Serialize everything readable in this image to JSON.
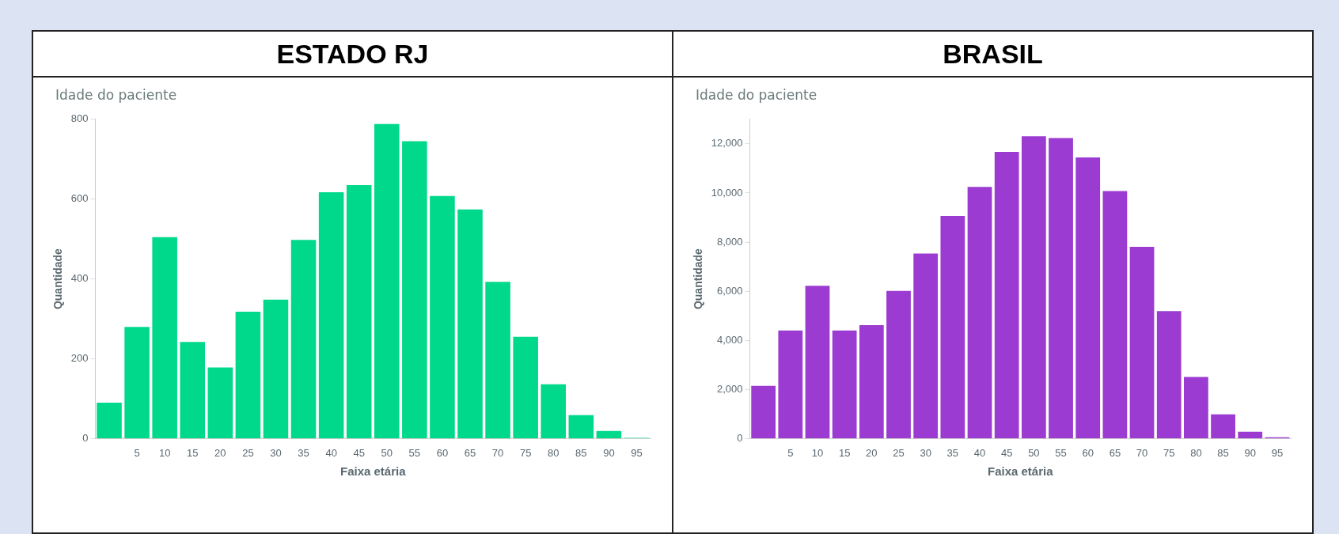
{
  "chart_data": [
    {
      "type": "bar",
      "title": "ESTADO RJ",
      "subtitle": "Idade do paciente",
      "xlabel": "Faixa etária",
      "ylabel": "Quantidade",
      "categories": [
        null,
        "5",
        "10",
        "15",
        "20",
        "25",
        "30",
        "35",
        "40",
        "45",
        "50",
        "55",
        "60",
        "65",
        "70",
        "75",
        "80",
        "85",
        "90",
        "95"
      ],
      "values": [
        90,
        280,
        505,
        242,
        178,
        318,
        348,
        498,
        617,
        635,
        788,
        745,
        608,
        574,
        393,
        255,
        136,
        59,
        19,
        2
      ],
      "color": "#00d98b",
      "ylim": [
        0,
        800
      ],
      "yticks": [
        0,
        200,
        400,
        600,
        800
      ],
      "grid": false,
      "legend": false
    },
    {
      "type": "bar",
      "title": "BRASIL",
      "subtitle": "Idade do paciente",
      "xlabel": "Faixa etária",
      "ylabel": "Quantidade",
      "categories": [
        null,
        "5",
        "10",
        "15",
        "20",
        "25",
        "30",
        "35",
        "40",
        "45",
        "50",
        "55",
        "60",
        "65",
        "70",
        "75",
        "80",
        "85",
        "90",
        "95"
      ],
      "values": [
        2150,
        4400,
        6220,
        4400,
        4620,
        6010,
        7530,
        9060,
        10250,
        11670,
        12310,
        12240,
        11450,
        10080,
        7810,
        5190,
        2510,
        990,
        280,
        50
      ],
      "color": "#9b3bd1",
      "ylim": [
        0,
        13000
      ],
      "yticks": [
        0,
        {
          "value": 2000,
          "label": "2,000"
        },
        {
          "value": 4000,
          "label": "4,000"
        },
        {
          "value": 6000,
          "label": "6,000"
        },
        {
          "value": 8000,
          "label": "8,000"
        },
        {
          "value": 10000,
          "label": "10,000"
        },
        {
          "value": 12000,
          "label": "12,000"
        }
      ],
      "grid": false,
      "legend": false
    }
  ]
}
